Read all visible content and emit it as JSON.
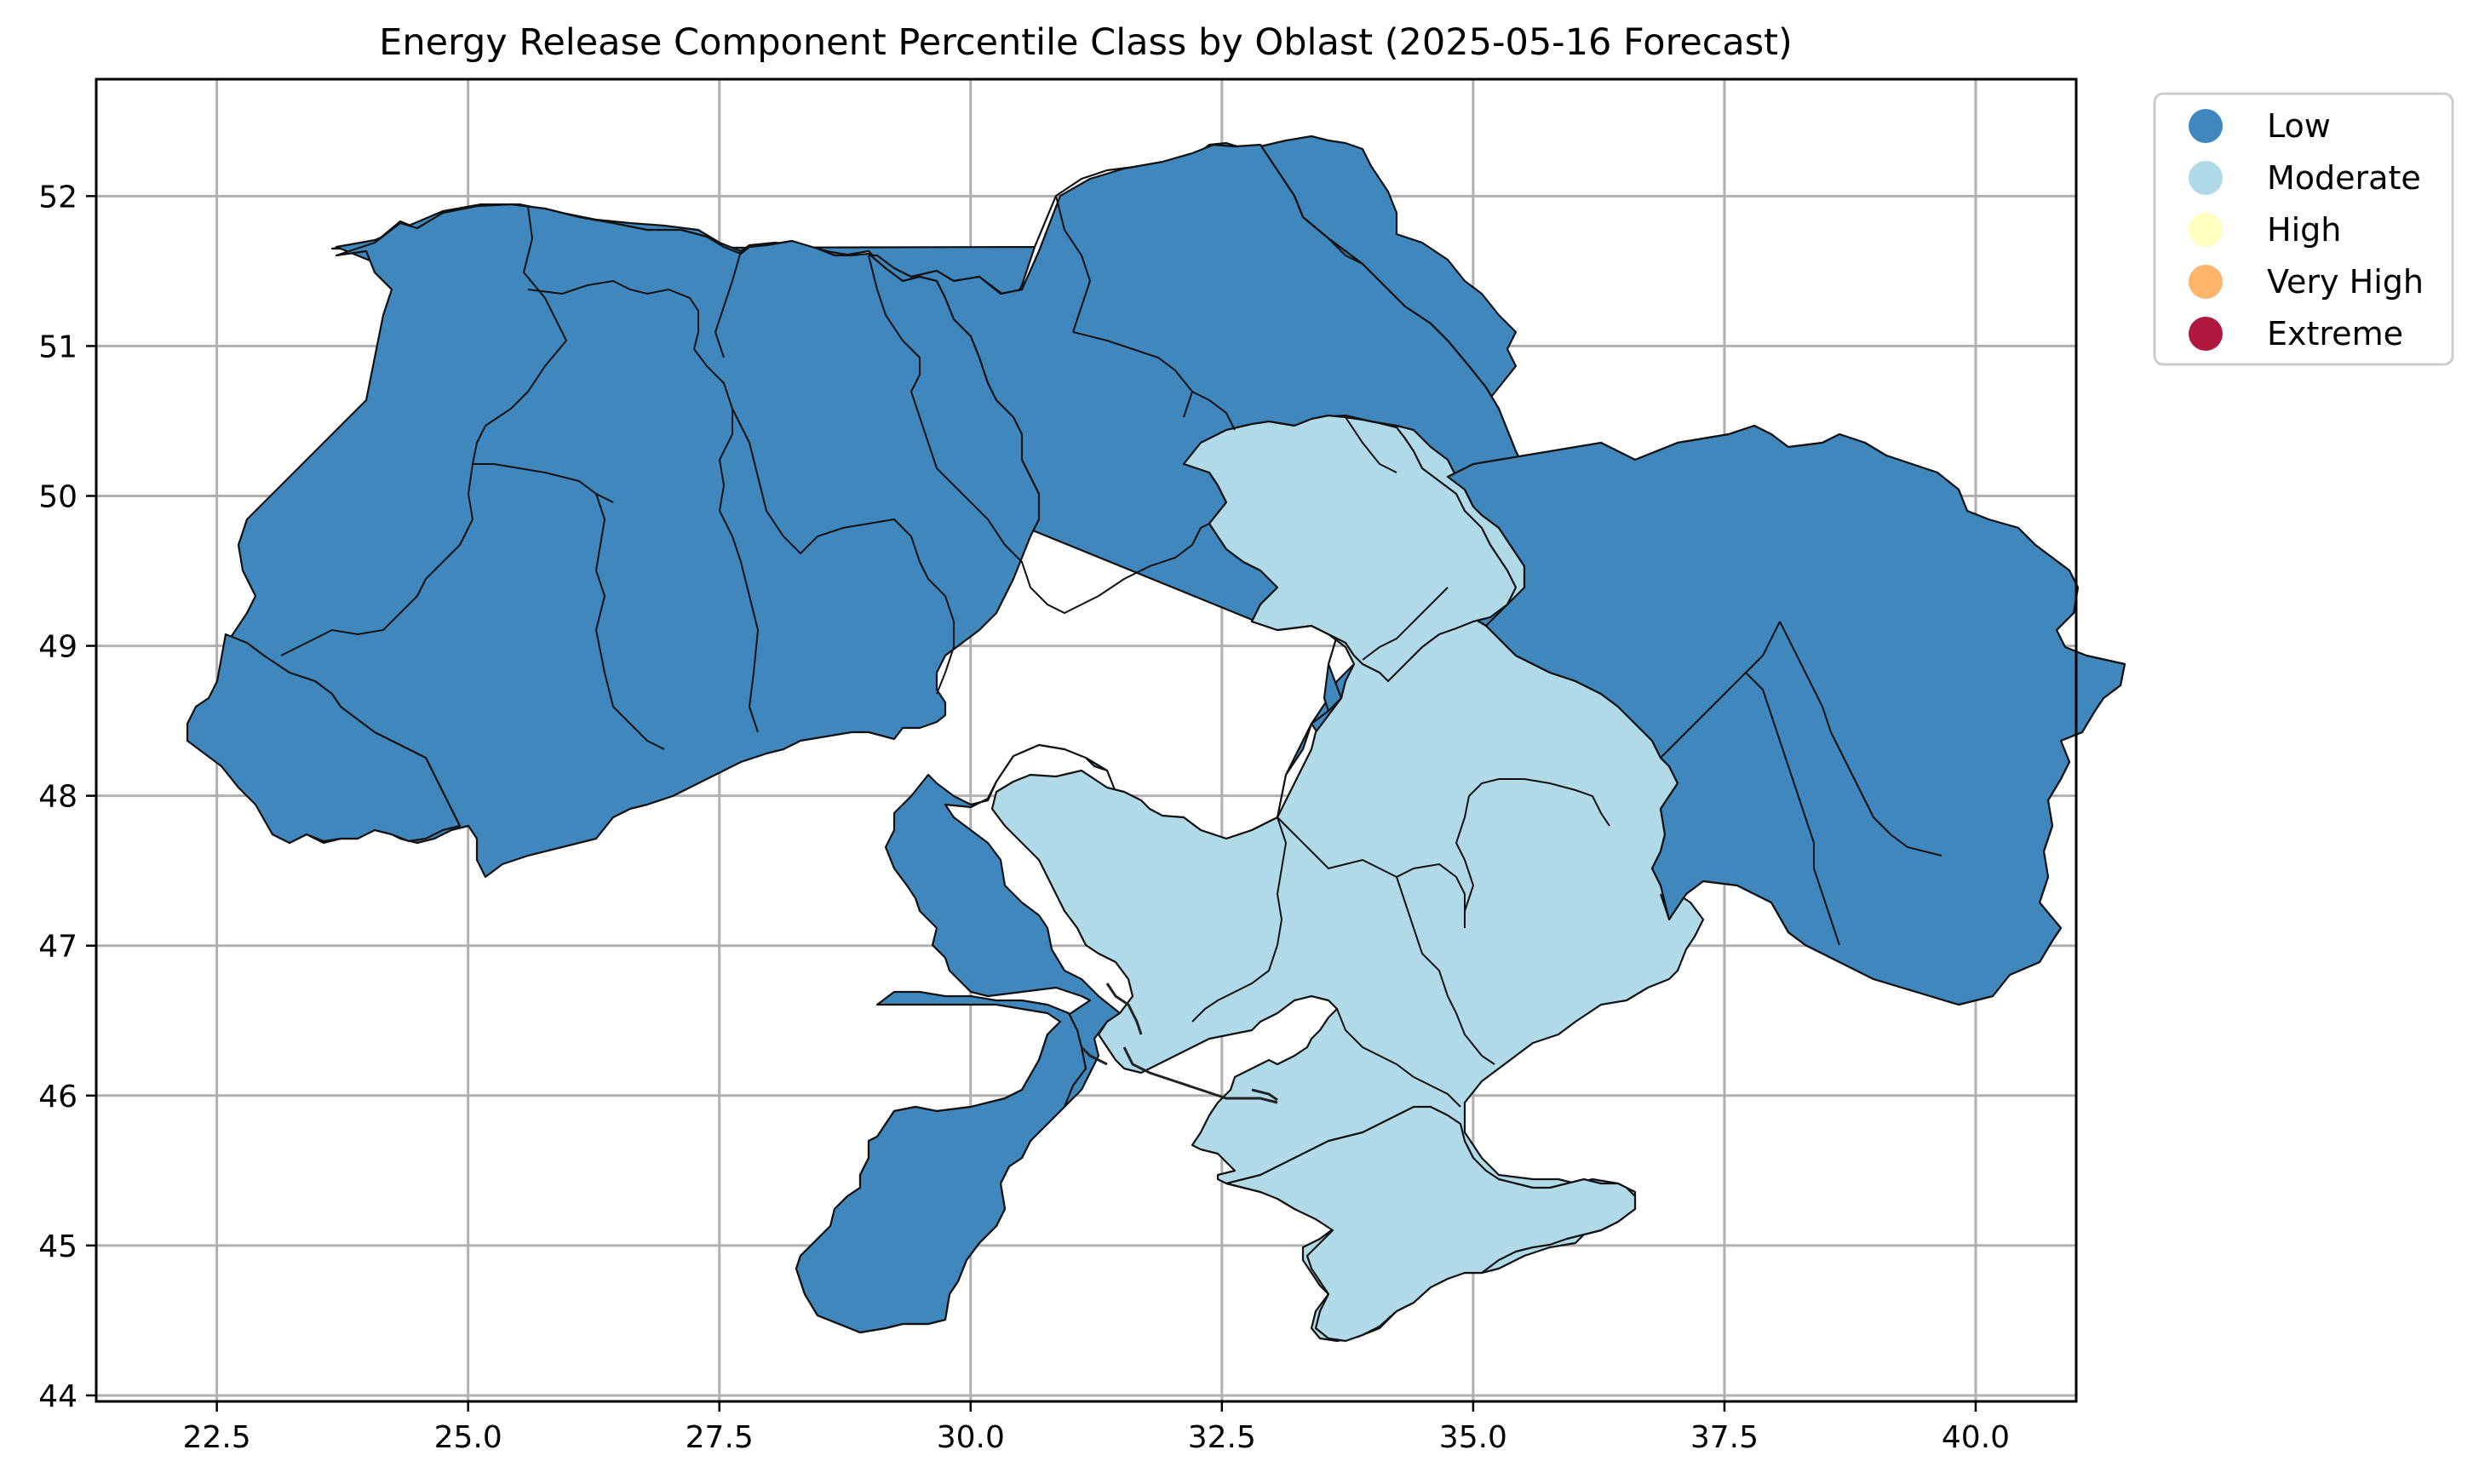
{
  "title": "Energy Release Component Percentile Class by Oblast (2025-05-16 Forecast)",
  "colors": {
    "Low": "#3f87bd",
    "Moderate": "#b1dae9",
    "High": "#ffffbf",
    "Very High": "#fdb46b",
    "Extreme": "#b0173f",
    "grid": "#b0b0b0",
    "border": "#111111"
  },
  "legend": [
    {
      "label": "Low",
      "color": "#3f87bd"
    },
    {
      "label": "Moderate",
      "color": "#b1dae9"
    },
    {
      "label": "High",
      "color": "#ffffbf"
    },
    {
      "label": "Very High",
      "color": "#fdb46b"
    },
    {
      "label": "Extreme",
      "color": "#b0173f"
    }
  ],
  "xticks": [
    "22.5",
    "25.0",
    "27.5",
    "30.0",
    "32.5",
    "35.0",
    "37.5",
    "40.0"
  ],
  "yticks": [
    "44",
    "45",
    "46",
    "47",
    "48",
    "49",
    "50",
    "51",
    "52"
  ],
  "chart_data": {
    "type": "choropleth",
    "title": "Energy Release Component Percentile Class by Oblast (2025-05-16 Forecast)",
    "xlim": [
      21.3,
      41.0
    ],
    "ylim": [
      43.96,
      52.78
    ],
    "xticks": [
      22.5,
      25.0,
      27.5,
      30.0,
      32.5,
      35.0,
      37.5,
      40.0
    ],
    "yticks": [
      44,
      45,
      46,
      47,
      48,
      49,
      50,
      51,
      52
    ],
    "grid": true,
    "legend_position": "outside-top-right",
    "classes": [
      "Low",
      "Moderate",
      "High",
      "Very High",
      "Extreme"
    ]
  }
}
